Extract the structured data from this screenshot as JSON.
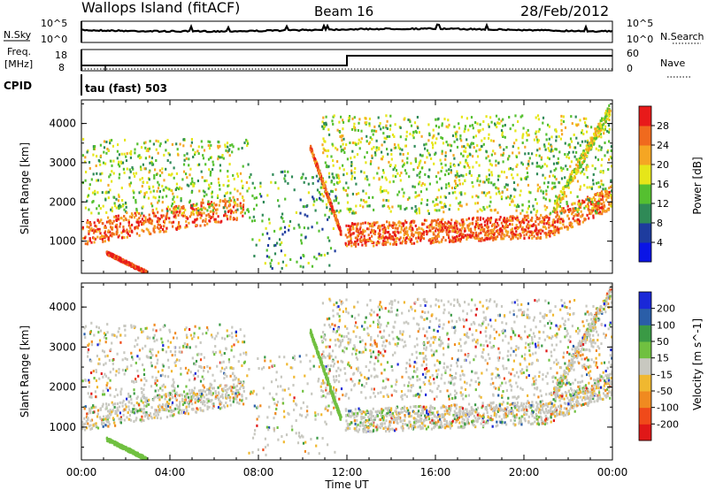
{
  "header": {
    "station": "Wallops Island (fitACF)",
    "beam": "Beam 16",
    "date": "28/Feb/2012"
  },
  "labels": {
    "n_sky": "N.Sky",
    "freq_line1": "Freq.",
    "freq_line2": "[MHz]",
    "cpid": "CPID",
    "n_search": "N.Search",
    "nave": "Nave",
    "cpid_name": "tau (fast) 503"
  },
  "noise_axis": {
    "left_ticks": [
      "10^5",
      "10^0"
    ],
    "right_ticks": [
      "10^5",
      "10^0"
    ]
  },
  "freq_axis": {
    "left_ticks": [
      "18",
      "8"
    ],
    "right_ticks": [
      "60",
      "0"
    ]
  },
  "colors": {
    "power": [
      "#0a14e6",
      "#1e3c9e",
      "#2f8a57",
      "#55c030",
      "#e6e619",
      "#f5a623",
      "#f06a1e",
      "#e81a1a"
    ],
    "velocity": [
      "#e01818",
      "#f04a1a",
      "#f08a20",
      "#f0b830",
      "#c8c8c0",
      "#70c040",
      "#3a9a45",
      "#2a5ea8",
      "#1a28d8"
    ]
  },
  "chart_data": [
    {
      "type": "heatmap",
      "title": "Power",
      "ylabel": "Slant Range [km]",
      "xlabel": "Time UT",
      "ylim": [
        180,
        4600
      ],
      "yticks": [
        1000,
        2000,
        3000,
        4000
      ],
      "xlim_hours": [
        0,
        24
      ],
      "xtick_labels": [
        "00:00",
        "04:00",
        "08:00",
        "12:00",
        "16:00",
        "20:00",
        "00:00"
      ],
      "colorbar": {
        "label": "Power [dB]",
        "ticks": [
          "4",
          "8",
          "12",
          "16",
          "20",
          "24",
          "28"
        ],
        "range": [
          0,
          30
        ]
      }
    },
    {
      "type": "heatmap",
      "title": "Velocity",
      "ylabel": "Slant Range [km]",
      "xlabel": "Time UT",
      "ylim": [
        180,
        4600
      ],
      "yticks": [
        1000,
        2000,
        3000,
        4000
      ],
      "xlim_hours": [
        0,
        24
      ],
      "xtick_labels": [
        "00:00",
        "04:00",
        "08:00",
        "12:00",
        "16:00",
        "20:00",
        "00:00"
      ],
      "colorbar": {
        "label": "Velocity [m s^-1]",
        "ticks": [
          "200",
          "100",
          "50",
          "15",
          "-15",
          "-50",
          "-100",
          "-200"
        ],
        "range": [
          -250,
          250
        ]
      }
    }
  ]
}
